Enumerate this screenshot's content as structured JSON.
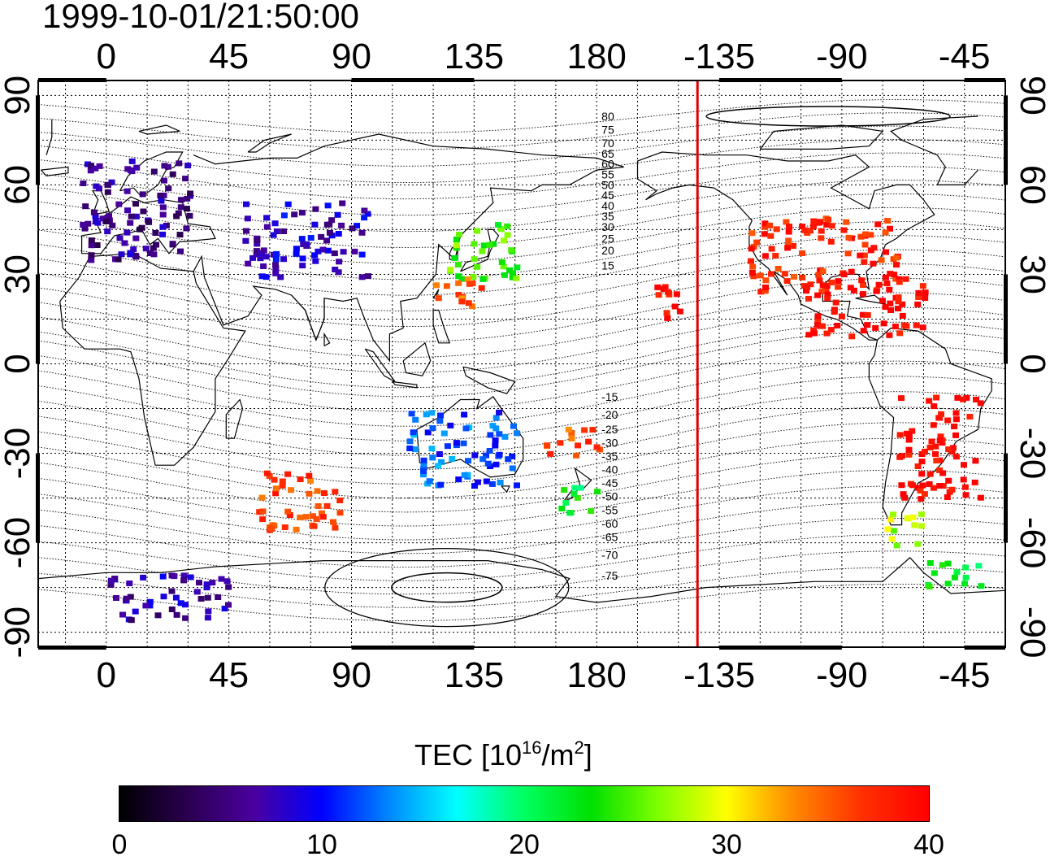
{
  "title": "1999-10-01/21:50:00",
  "map": {
    "lon_ticks_top": [
      "0",
      "45",
      "90",
      "135",
      "180",
      "-135",
      "-90",
      "-45"
    ],
    "lon_ticks_bottom": [
      "0",
      "45",
      "90",
      "135",
      "180",
      "-135",
      "-90",
      "-45"
    ],
    "lat_ticks": [
      "90",
      "60",
      "30",
      "0",
      "-30",
      "-60",
      "-90"
    ],
    "lat_tick_values": [
      90,
      60,
      30,
      0,
      -30,
      -60,
      -90
    ],
    "lon_range": [
      -25,
      330
    ],
    "lat_range": [
      -95,
      95
    ],
    "grid": true,
    "terminator_longitude": -143,
    "terminator_color": "#e00000",
    "magnetic_latitude_labels": [
      "80",
      "75",
      "70",
      "65",
      "60",
      "55",
      "50",
      "45",
      "40",
      "35",
      "30",
      "25",
      "20",
      "15",
      "-15",
      "-20",
      "-25",
      "-30",
      "-35",
      "-40",
      "-45",
      "-50",
      "-55",
      "-60",
      "-65",
      "-70",
      "-75"
    ]
  },
  "colorbar": {
    "label_prefix": "TEC  [10",
    "label_exp1": "16",
    "label_mid": "/m",
    "label_exp2": "2",
    "label_suffix": "]",
    "min": 0,
    "max": 40,
    "ticks": [
      "0",
      "10",
      "20",
      "30",
      "40"
    ],
    "tick_values": [
      0,
      10,
      20,
      30,
      40
    ],
    "stops": [
      "#000000",
      "#2a004f",
      "#4a00a0",
      "#0000ff",
      "#0088ff",
      "#00ffff",
      "#00ff60",
      "#00e000",
      "#80ff00",
      "#ffff00",
      "#ff8800",
      "#ff3000",
      "#ff0000"
    ]
  },
  "chart_data": {
    "type": "heatmap",
    "title": "1999-10-01/21:50:00",
    "colorbar_label": "TEC [10^16/m^2]",
    "value_range": [
      0,
      40
    ],
    "regions": [
      {
        "lon_range": [
          -10,
          30
        ],
        "lat_range": [
          35,
          70
        ],
        "tec": 6
      },
      {
        "lon_range": [
          50,
          95
        ],
        "lat_range": [
          30,
          55
        ],
        "tec": 8
      },
      {
        "lon_range": [
          125,
          150
        ],
        "lat_range": [
          28,
          48
        ],
        "tec": 25
      },
      {
        "lon_range": [
          118,
          138
        ],
        "lat_range": [
          20,
          30
        ],
        "tec": 35
      },
      {
        "lon_range": [
          -125,
          -70
        ],
        "lat_range": [
          25,
          50
        ],
        "tec": 38
      },
      {
        "lon_range": [
          -105,
          -60
        ],
        "lat_range": [
          10,
          30
        ],
        "tec": 40
      },
      {
        "lon_range": [
          -70,
          -40
        ],
        "lat_range": [
          -45,
          -10
        ],
        "tec": 40
      },
      {
        "lon_range": [
          -75,
          -60
        ],
        "lat_range": [
          -60,
          -48
        ],
        "tec": 28
      },
      {
        "lon_range": [
          -160,
          -150
        ],
        "lat_range": [
          15,
          30
        ],
        "tec": 40
      },
      {
        "lon_range": [
          160,
          180
        ],
        "lat_range": [
          -30,
          -20
        ],
        "tec": 36
      },
      {
        "lon_range": [
          165,
          180
        ],
        "lat_range": [
          -50,
          -40
        ],
        "tec": 22
      },
      {
        "lon_range": [
          55,
          85
        ],
        "lat_range": [
          -55,
          -35
        ],
        "tec": 36
      },
      {
        "lon_range": [
          110,
          150
        ],
        "lat_range": [
          -40,
          -15
        ],
        "tec": 12
      },
      {
        "lon_range": [
          0,
          45
        ],
        "lat_range": [
          -85,
          -70
        ],
        "tec": 7
      },
      {
        "lon_range": [
          -60,
          -40
        ],
        "lat_range": [
          -75,
          -65
        ],
        "tec": 22
      }
    ]
  }
}
